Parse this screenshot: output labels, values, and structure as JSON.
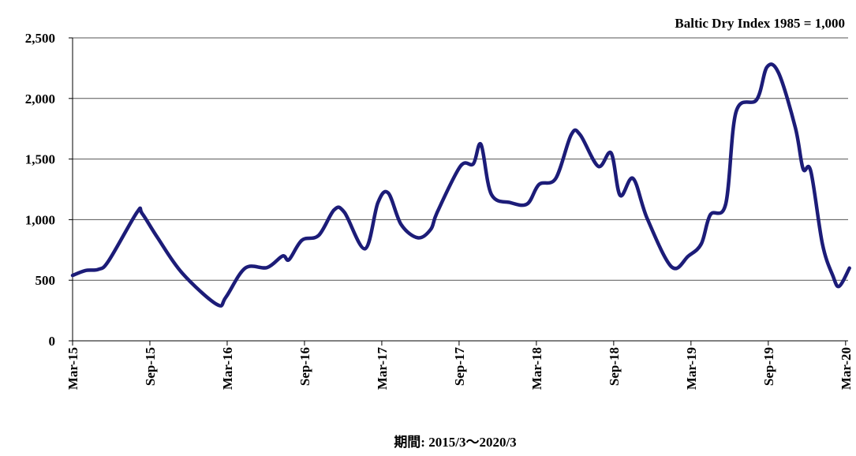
{
  "chart_data": {
    "type": "line",
    "title": "",
    "unit_label": "Baltic Dry Index 1985 = 1,000",
    "footer_label": "期間: 2015/3～2020/3",
    "ylim": [
      0,
      2500
    ],
    "y_tick_values": [
      0,
      500,
      1000,
      1500,
      2000,
      2500
    ],
    "y_tick_labels": [
      "0",
      "500",
      "1,000",
      "1,500",
      "2,000",
      "2,500"
    ],
    "x_tick_labels": [
      "Mar-15",
      "Sep-15",
      "Mar-16",
      "Sep-16",
      "Mar-17",
      "Sep-17",
      "Mar-18",
      "Sep-18",
      "Mar-19",
      "Sep-19",
      "Mar-20"
    ],
    "x_tick_months": [
      0,
      6,
      12,
      18,
      24,
      30,
      36,
      42,
      48,
      54,
      60
    ],
    "grid": true,
    "line_color": "#1c1c78",
    "series": [
      {
        "name": "",
        "x": [
          0,
          1,
          2,
          2.8,
          5,
          5.4,
          6.6,
          8.5,
          11.2,
          11.9,
          13.4,
          15.1,
          16.3,
          16.8,
          17.8,
          19.1,
          20.3,
          21.1,
          22.7,
          23.7,
          24.5,
          25.5,
          26.8,
          27.8,
          28.3,
          30.1,
          31.1,
          31.7,
          32.5,
          34,
          35.3,
          36.2,
          37.5,
          38.7,
          39.4,
          40.8,
          41.8,
          42.5,
          43.5,
          44.6,
          46.5,
          47.8,
          48.8,
          49.5,
          50.7,
          51.5,
          53.1,
          53.9,
          54.8,
          56.1,
          56.7,
          57.3,
          58.2,
          59,
          59.5,
          60.3
        ],
        "y": [
          540,
          580,
          590,
          660,
          1060,
          1050,
          850,
          560,
          300,
          360,
          600,
          605,
          700,
          670,
          830,
          870,
          1080,
          1060,
          760,
          1140,
          1220,
          960,
          850,
          920,
          1060,
          1440,
          1460,
          1620,
          1210,
          1140,
          1130,
          1290,
          1340,
          1700,
          1700,
          1440,
          1550,
          1200,
          1340,
          1010,
          610,
          700,
          800,
          1040,
          1130,
          1890,
          1990,
          2260,
          2210,
          1760,
          1420,
          1400,
          800,
          540,
          450,
          600
        ]
      }
    ]
  }
}
